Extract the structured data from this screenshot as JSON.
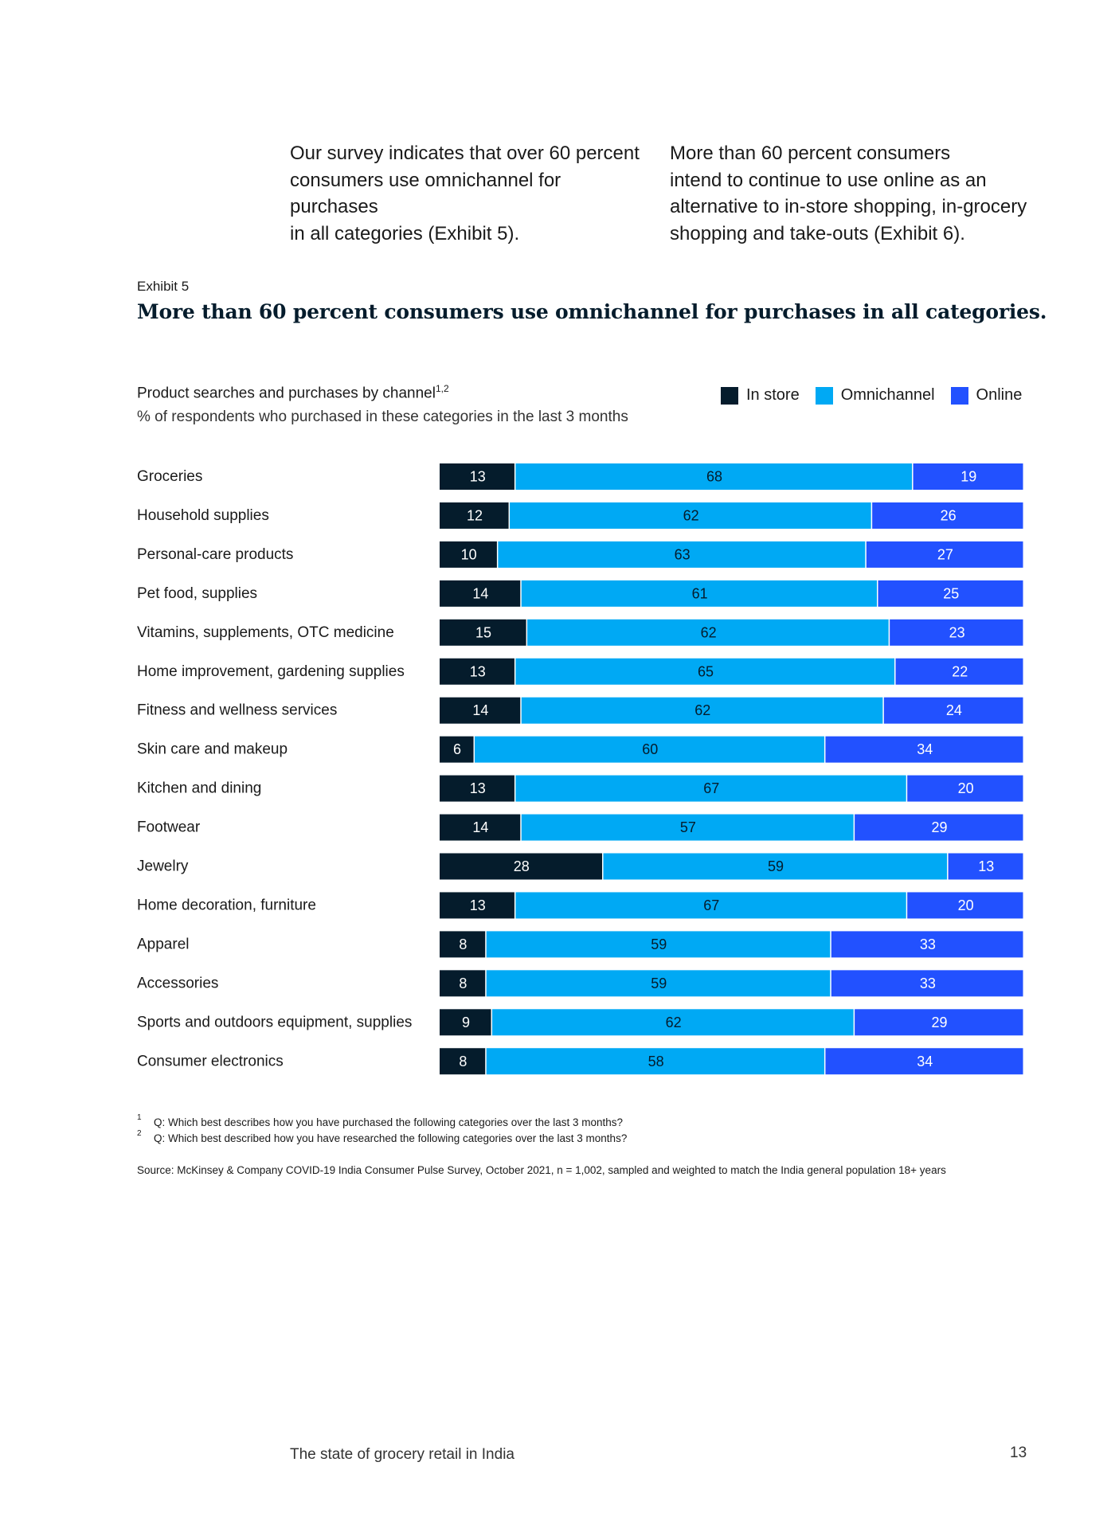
{
  "intro": {
    "left_lines": [
      "Our survey indicates that over 60 percent",
      "consumers use omnichannel for purchases",
      "in all categories (Exhibit 5)."
    ],
    "right_lines": [
      "More than 60 percent consumers",
      "intend to continue to use online as an",
      "alternative to in-store shopping, in-grocery",
      "shopping and take-outs (Exhibit 6)."
    ]
  },
  "exhibit": {
    "label": "Exhibit 5",
    "title": "More than 60 percent consumers use omnichannel for purchases in all categories."
  },
  "chart_data": {
    "type": "bar",
    "orientation": "horizontal",
    "stacked": true,
    "title": "Product searches and purchases by channel",
    "title_superscript": "1,2",
    "subtitle": "% of respondents who purchased in these categories in the last 3 months",
    "categories": [
      "Groceries",
      "Household supplies",
      "Personal-care products",
      "Pet food, supplies",
      "Vitamins, supplements, OTC medicine",
      "Home improvement, gardening supplies",
      "Fitness and wellness services",
      "Skin care and makeup",
      "Kitchen and dining",
      "Footwear",
      "Jewelry",
      "Home decoration, furniture",
      "Apparel",
      "Accessories",
      "Sports and outdoors equipment, supplies",
      "Consumer electronics"
    ],
    "series": [
      {
        "name": "In store",
        "color": "#051c2c",
        "label_color": "#ffffff",
        "values": [
          13,
          12,
          10,
          14,
          15,
          13,
          14,
          6,
          13,
          14,
          28,
          13,
          8,
          8,
          9,
          8
        ]
      },
      {
        "name": "Omnichannel",
        "color": "#00a9f4",
        "label_color": "#051c2c",
        "values": [
          68,
          62,
          63,
          61,
          62,
          65,
          62,
          60,
          67,
          57,
          59,
          67,
          59,
          59,
          62,
          58
        ]
      },
      {
        "name": "Online",
        "color": "#2251ff",
        "label_color": "#ffffff",
        "values": [
          19,
          26,
          27,
          25,
          23,
          22,
          24,
          34,
          20,
          29,
          13,
          20,
          33,
          33,
          29,
          34
        ]
      }
    ],
    "xlim": [
      0,
      100
    ],
    "legend_position": "top-right"
  },
  "footnotes": [
    {
      "num": "1",
      "text": "Q: Which best describes how you have purchased the following categories over the last 3 months?"
    },
    {
      "num": "2",
      "text": "Q: Which best described how you have researched the following categories over the last 3 months?"
    }
  ],
  "source": "Source: McKinsey & Company COVID-19 India Consumer Pulse Survey, October 2021, n = 1,002, sampled and weighted to match the India general population 18+ years",
  "footer": {
    "title": "The state of grocery retail in India",
    "page_number": "13"
  }
}
